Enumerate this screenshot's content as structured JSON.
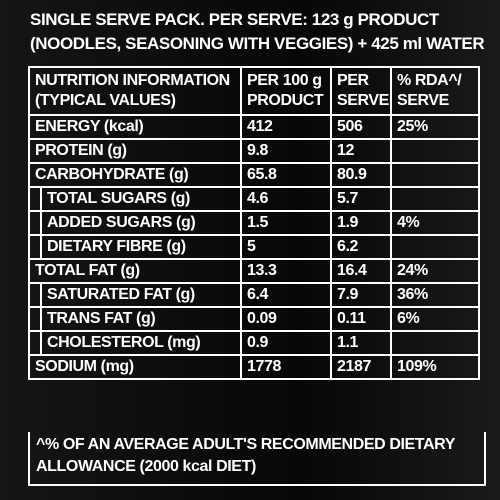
{
  "header": {
    "lines": [
      "SINGLE SERVE PACK. PER SERVE: 123 g PRODUCT",
      "(NOODLES, SEASONING WITH VEGGIES) + 425 ml WATER"
    ]
  },
  "table": {
    "columns": [
      [
        "NUTRITION INFORMATION",
        "(TYPICAL VALUES)"
      ],
      [
        "PER 100 g",
        "PRODUCT"
      ],
      [
        "PER",
        "SERVE"
      ],
      [
        "% RDA^/",
        "SERVE"
      ]
    ],
    "rows": [
      [
        "ENERGY (kcal)",
        "412",
        "506",
        "25%"
      ],
      [
        "PROTEIN (g)",
        "9.8",
        "12"
      ],
      [
        "CARBOHYDRATE (g)",
        "65.8",
        "80.9"
      ],
      [
        "TOTAL SUGARS (g)",
        "4.6",
        "5.7"
      ],
      [
        "ADDED SUGARS (g)",
        "1.5",
        "1.9",
        "4%"
      ],
      [
        "DIETARY FIBRE (g)",
        "5",
        "6.2"
      ],
      [
        "TOTAL FAT (g)",
        "13.3",
        "16.4",
        "24%"
      ],
      [
        "SATURATED FAT (g)",
        "6.4",
        "7.9",
        "36%"
      ],
      [
        "TRANS FAT (g)",
        "0.09",
        "0.11",
        "6%"
      ],
      [
        "CHOLESTEROL (mg)",
        "0.9",
        "1.1"
      ],
      [
        "SODIUM (mg)",
        "1778",
        "2187",
        "109%"
      ]
    ]
  },
  "footer": {
    "lines": [
      "^% OF AN AVERAGE ADULT'S RECOMMENDED DIETARY",
      "ALLOWANCE (2000 kcal DIET)"
    ]
  }
}
